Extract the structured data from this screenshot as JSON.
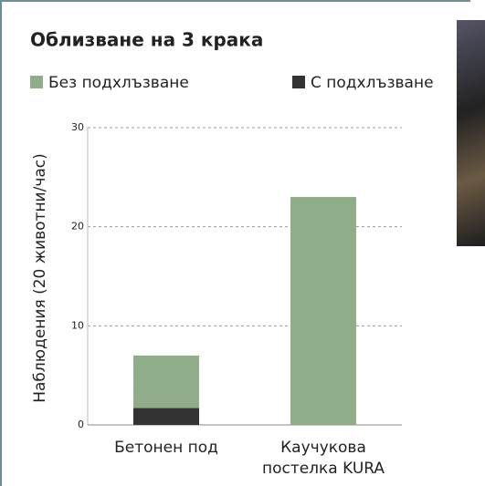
{
  "chart_data": {
    "type": "stacked_bar",
    "title": "Облизване на 3 крака",
    "y_label": "Наблюдения (20 животни/час)",
    "categories": [
      "Бетонен под",
      "Каучукова постелка KURA"
    ],
    "series": [
      {
        "name": "Без подхлъзване",
        "color": "#8fad88",
        "values": [
          5.3,
          23
        ]
      },
      {
        "name": "С подхлъзване",
        "color": "#333333",
        "values": [
          1.7,
          0
        ]
      }
    ],
    "ylim": [
      0,
      30
    ],
    "yticks": [
      0,
      10,
      20,
      30
    ],
    "grid": true
  }
}
